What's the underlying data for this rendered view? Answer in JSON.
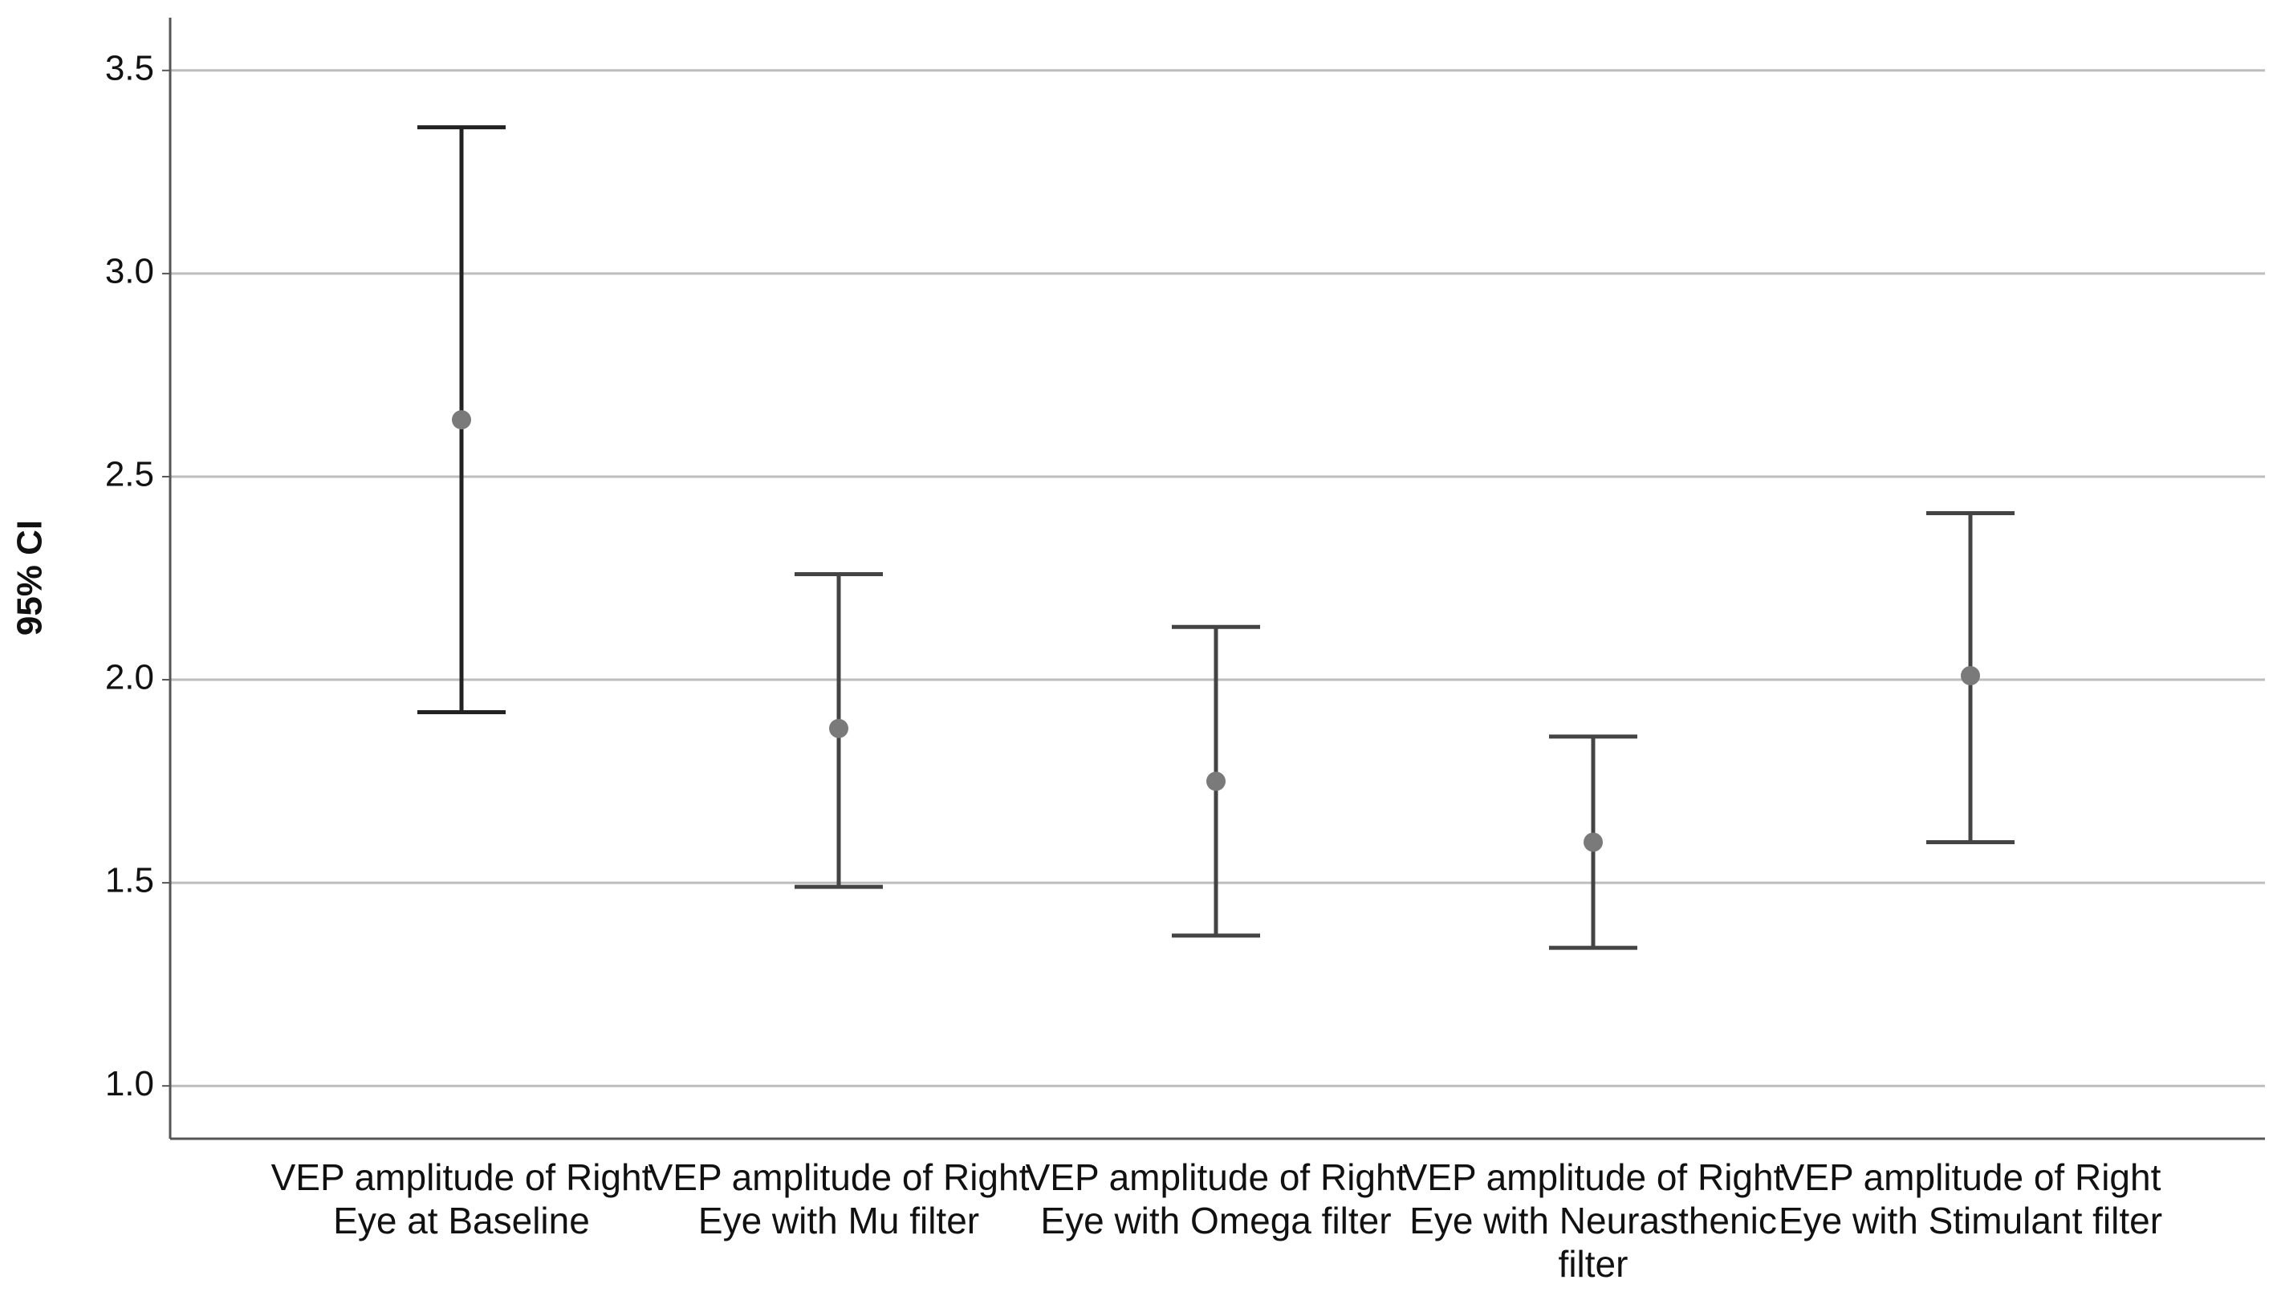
{
  "chart_data": {
    "type": "errorbar",
    "y_label": "95% CI",
    "categories": [
      "VEP amplitude of Right Eye at Baseline",
      "VEP amplitude of Right Eye with Mu filter",
      "VEP amplitude of Right Eye with Omega filter",
      "VEP amplitude of Right Eye with Neurasthenic filter",
      "VEP amplitude of Right Eye with Stimulant filter"
    ],
    "values": [
      2.64,
      1.88,
      1.75,
      1.6,
      2.01
    ],
    "lower": [
      1.92,
      1.49,
      1.37,
      1.34,
      1.6
    ],
    "upper": [
      3.36,
      2.26,
      2.13,
      1.86,
      2.41
    ],
    "colors": [
      "#222222",
      "#444444",
      "#444444",
      "#444444",
      "#444444"
    ],
    "marker_color": "#7a7a7a",
    "ylim": [
      0.87,
      3.63
    ],
    "yticks": [
      {
        "value": 1,
        "label": "1.0"
      },
      1.5,
      {
        "value": 2,
        "label": "2.0"
      },
      2.5,
      {
        "value": 3,
        "label": "3.0"
      },
      3.5
    ],
    "grid": true
  }
}
